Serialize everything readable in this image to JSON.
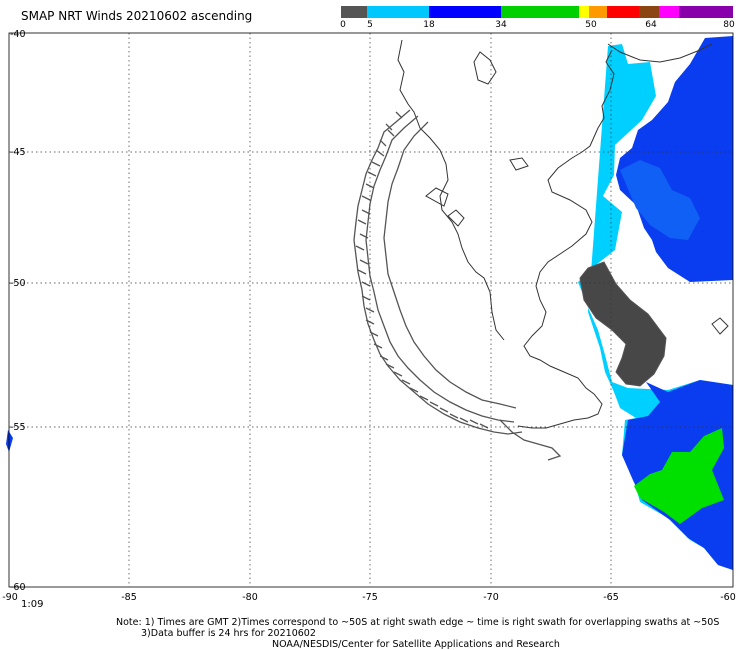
{
  "header": {
    "title": "SMAP NRT Winds 20210602 ascending"
  },
  "colorbar": {
    "labels": [
      "0",
      "5",
      "18",
      "34",
      "50",
      "64",
      "80"
    ],
    "segments": [
      {
        "color": "#555555"
      },
      {
        "color": "#00c8ff"
      },
      {
        "color": "#0000ff"
      },
      {
        "color": "#00d000"
      },
      {
        "color": "#ffff00"
      },
      {
        "color": "#ff9900"
      },
      {
        "color": "#ff0000"
      },
      {
        "color": "#8b4513"
      },
      {
        "color": "#ff00ff"
      },
      {
        "color": "#8800aa"
      }
    ]
  },
  "map": {
    "lat_labels": [
      "-40",
      "-45",
      "-50",
      "-55",
      "-60"
    ],
    "lon_labels": [
      "-90",
      "-85",
      "-80",
      "-75",
      "-70",
      "-65",
      "-60"
    ],
    "lon_range": [
      -90,
      -60
    ],
    "lat_range": [
      -40,
      -60
    ],
    "time_label": "1:09"
  },
  "footer": {
    "note_line1": "Note: 1) Times are GMT 2)Times correspond to ~50S at right swath edge ~ time is right swath for overlapping swaths at ~50S",
    "note_line2": "3)Data buffer is 24 hrs for 20210602",
    "credit": "NOAA/NESDIS/Center for Satellite Applications and Research"
  }
}
